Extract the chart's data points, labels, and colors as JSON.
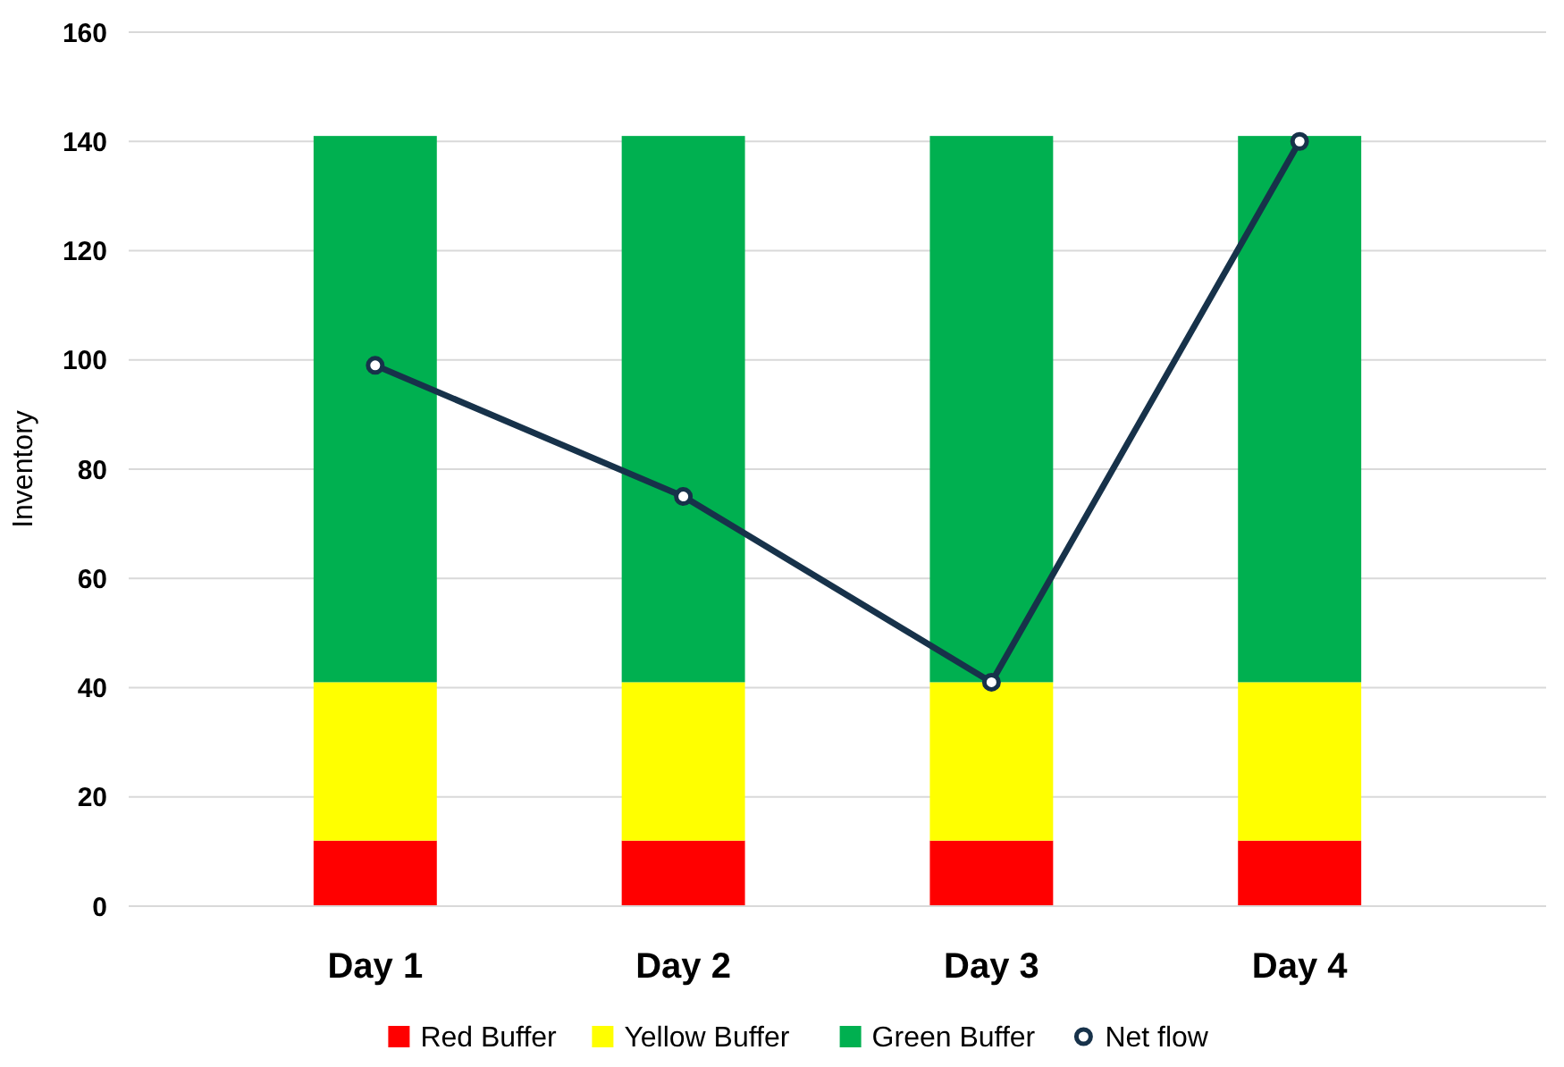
{
  "chart_data": {
    "type": "bar",
    "stacked": true,
    "ylabel": "Inventory",
    "categories": [
      "Day 1",
      "Day 2",
      "Day 3",
      "Day 4"
    ],
    "series": [
      {
        "name": "Red Buffer",
        "color": "#ff0000",
        "values": [
          12,
          12,
          12,
          12
        ]
      },
      {
        "name": "Yellow Buffer",
        "color": "#ffff00",
        "values": [
          29,
          29,
          29,
          29
        ]
      },
      {
        "name": "Green Buffer",
        "color": "#00b050",
        "values": [
          100,
          100,
          100,
          100
        ]
      },
      {
        "name": "Net flow",
        "type": "line",
        "color": "#17324a",
        "marker": "circle",
        "values": [
          99,
          75,
          41,
          140
        ]
      }
    ],
    "ylim": [
      0,
      160
    ],
    "yticks": [
      0,
      20,
      40,
      60,
      80,
      100,
      120,
      140,
      160
    ],
    "grid": "y",
    "legend": "bottom"
  }
}
